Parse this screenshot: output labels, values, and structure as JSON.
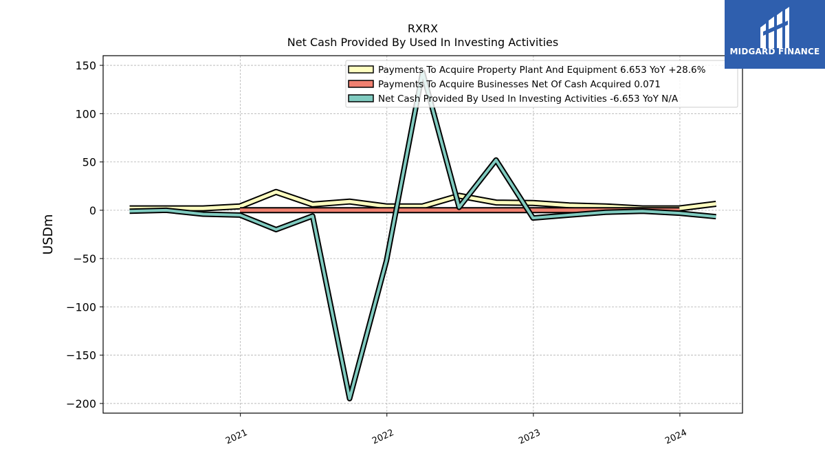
{
  "logo": {
    "text": "MIDGARD FINANCE",
    "background": "#2f5fae"
  },
  "chart_data": {
    "type": "line",
    "title": "RXRX",
    "subtitle": "Net Cash Provided By Used In Investing Activities",
    "xlabel": "",
    "ylabel": "USDm",
    "ylim": [
      -210,
      160
    ],
    "yticks": [
      150,
      100,
      50,
      0,
      -50,
      -100,
      -150,
      -200
    ],
    "ytick_labels": [
      "150",
      "100",
      "50",
      "0",
      "−50",
      "−100",
      "−150",
      "−200"
    ],
    "xticks": [
      "2021",
      "2022",
      "2023",
      "2024"
    ],
    "grid": true,
    "legend_position": "top-right",
    "x": [
      "2020-03-31",
      "2020-06-30",
      "2020-09-30",
      "2020-12-31",
      "2021-03-31",
      "2021-06-30",
      "2021-09-30",
      "2021-12-31",
      "2022-03-31",
      "2022-06-30",
      "2022-09-30",
      "2022-12-31",
      "2023-03-31",
      "2023-06-30",
      "2023-09-30",
      "2023-12-31",
      "2024-03-31"
    ],
    "series": [
      {
        "name": "Payments To Acquire Property Plant And Equipment",
        "legend_label": "Payments To Acquire Property Plant And Equipment  6.653 YoY +28.6%",
        "color": "#ffffc0",
        "values": [
          2,
          2,
          2,
          4,
          19,
          6,
          9,
          4,
          4,
          15,
          8,
          7.5,
          5,
          4,
          2,
          2,
          6.653
        ]
      },
      {
        "name": "Payments To Acquire Businesses Net Of Cash Acquired",
        "legend_label": "Payments To Acquire Businesses Net Of Cash Acquired  0.071",
        "color": "#f08070",
        "values": [
          null,
          null,
          null,
          0.071,
          0.071,
          0.071,
          0.071,
          0.071,
          0.071,
          0.071,
          0.071,
          0.071,
          0.071,
          0.071,
          0.071,
          0.071,
          null
        ]
      },
      {
        "name": "Net Cash Provided By Used In Investing Activities",
        "legend_label": "Net Cash Provided By Used In Investing Activities  -6.653 YoY N/A",
        "color": "#80cbc0",
        "values": [
          -1,
          0,
          -4,
          -5,
          -20,
          -6,
          -195,
          -52,
          143,
          3,
          52,
          -8,
          -5,
          -2,
          -1,
          -3,
          -6.653
        ]
      }
    ]
  }
}
